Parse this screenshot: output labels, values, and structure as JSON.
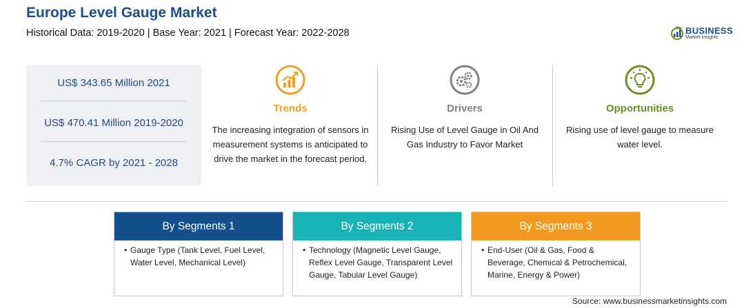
{
  "header": {
    "title": "Europe Level Gauge Market",
    "subtitle": "Historical Data: 2019-2020 | Base Year: 2021 | Forecast Year: 2022-2028"
  },
  "logo": {
    "word": "BUSINESS",
    "sub": "Market Insights"
  },
  "stats": {
    "market_size": "US$ 343.65 Million 2021",
    "historical": "US$ 470.41 Million 2019-2020",
    "cagr": "4.7% CAGR by 2021 - 2028"
  },
  "insights": {
    "trends": {
      "heading": "Trends",
      "text": "The increasing integration of sensors in measurement systems is anticipated to drive the market in the forecast period.",
      "color": "#f0a01e",
      "icon": "trend-chart-icon"
    },
    "drivers": {
      "heading": "Drivers",
      "text": "Rising Use of Level Gauge in Oil And Gas Industry to Favor Market",
      "color": "#808080",
      "icon": "gears-icon"
    },
    "opportunities": {
      "heading": "Opportunities",
      "text": "Rising use of level gauge to measure water level.",
      "color": "#6b8e23",
      "icon": "lightbulb-icon"
    }
  },
  "segments": [
    {
      "title": "By Segments 1",
      "bullet": "•",
      "text": "Gauge Type (Tank Level, Fuel Level, Water Level, Mechanical Level)",
      "color": "#124f8c"
    },
    {
      "title": "By Segments 2",
      "bullet": "•",
      "text": "Technology (Magnetic Level Gauge, Reflex Level Gauge, Transparent Level Gauge, Tabular Level Gauge)",
      "color": "#17b3b5"
    },
    {
      "title": "By Segments 3",
      "bullet": "•",
      "text": "End-User (Oil & Gas, Food & Beverage, Chemical & Petrochemical, Marine, Energy & Power)",
      "color": "#f39a1e"
    }
  ],
  "source": "Source: www.businessmarketinsights.com"
}
